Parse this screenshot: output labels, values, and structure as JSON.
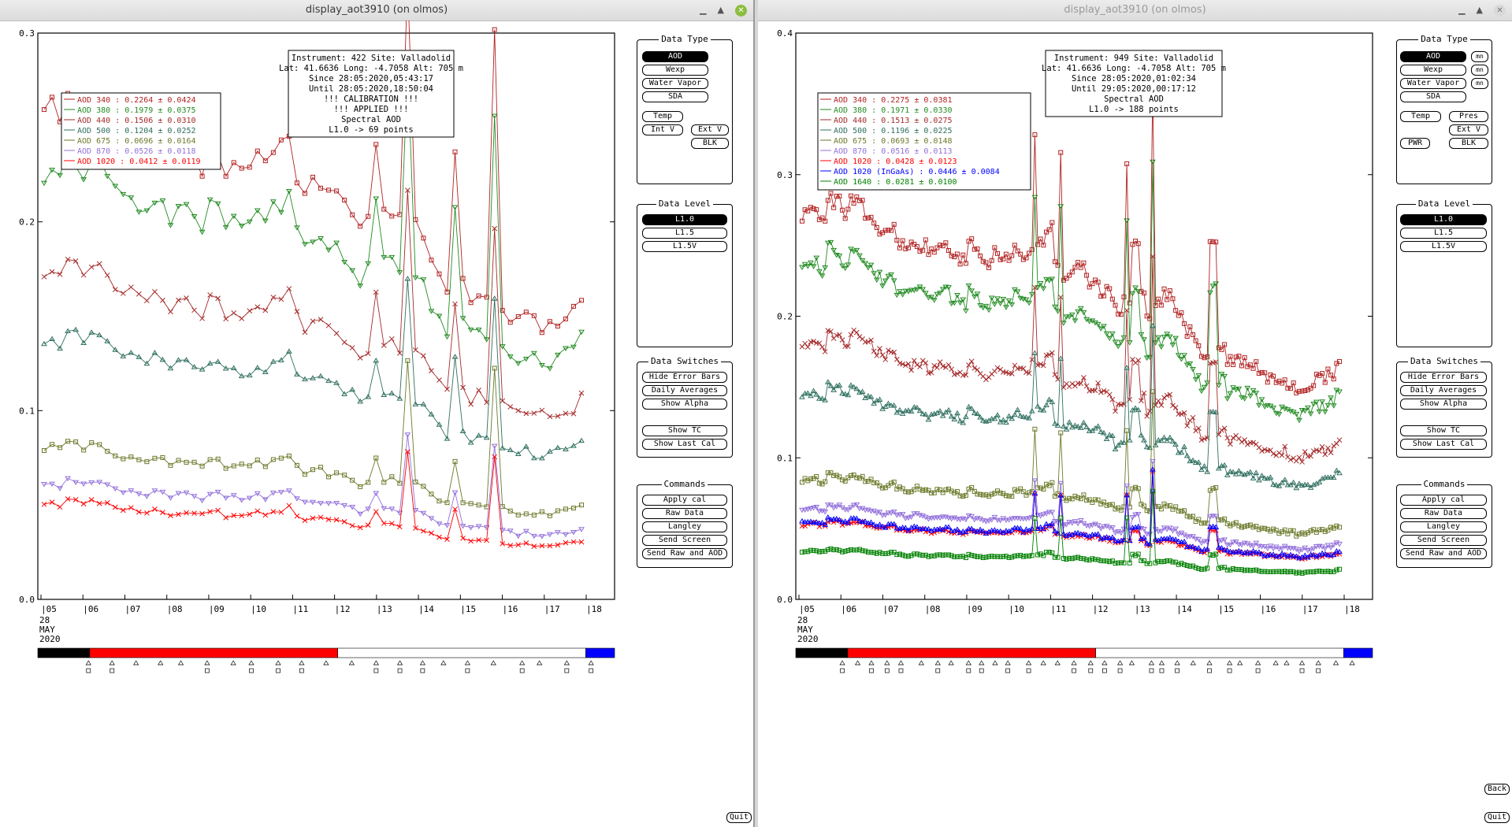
{
  "windows": [
    {
      "id": "L",
      "title": "display_aot3910 (on olmos)",
      "info": [
        "Instrument: 422 Site: Valladolid",
        "Lat: 41.6636 Long: -4.7058 Alt: 705 m",
        "Since 28:05:2020,05:43:17",
        "Until 28:05:2020,18:50:04",
        "!!! CALIBRATION !!!",
        "!!!  APPLIED  !!!",
        "Spectral AOD",
        "L1.0 -> 69 points"
      ],
      "legend": [
        {
          "label": "AOD 340  : 0.2264 ± 0.0424",
          "color": "#b22222",
          "marker": "square"
        },
        {
          "label": "AOD 380  : 0.1979 ± 0.0375",
          "color": "#228b22",
          "marker": "tridown"
        },
        {
          "label": "AOD 440  : 0.1506 ± 0.0310",
          "color": "#a52a2a",
          "marker": "x"
        },
        {
          "label": "AOD 500  : 0.1204 ± 0.0252",
          "color": "#2f6f5f",
          "marker": "triup"
        },
        {
          "label": "AOD 675  : 0.0696 ± 0.0164",
          "color": "#6b7a2a",
          "marker": "square"
        },
        {
          "label": "AOD 870  : 0.0526 ± 0.0118",
          "color": "#9370db",
          "marker": "tridown"
        },
        {
          "label": "AOD 1020  : 0.0412 ± 0.0119",
          "color": "#ff0000",
          "marker": "x"
        }
      ],
      "y_ticks": [
        "0.0",
        "0.1",
        "0.2",
        "0.3"
      ],
      "ymax": 0.3,
      "x_ticks": [
        "05",
        "06",
        "07",
        "08",
        "09",
        "10",
        "11",
        "12",
        "13",
        "14",
        "15",
        "16",
        "17",
        "18"
      ],
      "x_sub": [
        "28",
        "MAY",
        "2020"
      ],
      "quit_label": "Quit"
    },
    {
      "id": "R",
      "title": "display_aot3910 (on olmos)",
      "info": [
        "Instrument: 949 Site: Valladolid",
        "Lat: 41.6636 Long: -4.7058 Alt: 705 m",
        "Since 28:05:2020,01:02:34",
        "Until 29:05:2020,00:17:12",
        "Spectral AOD",
        "L1.0 -> 188 points"
      ],
      "legend": [
        {
          "label": "AOD 340  : 0.2275 ± 0.0381",
          "color": "#b22222",
          "marker": "square"
        },
        {
          "label": "AOD 380  : 0.1971 ± 0.0330",
          "color": "#228b22",
          "marker": "tridown"
        },
        {
          "label": "AOD 440  : 0.1513 ± 0.0275",
          "color": "#a52a2a",
          "marker": "x"
        },
        {
          "label": "AOD 500  : 0.1196 ± 0.0225",
          "color": "#2f6f5f",
          "marker": "triup"
        },
        {
          "label": "AOD 675  : 0.0693 ± 0.0148",
          "color": "#6b7a2a",
          "marker": "square"
        },
        {
          "label": "AOD 870  : 0.0516 ± 0.0113",
          "color": "#9370db",
          "marker": "tridown"
        },
        {
          "label": "AOD 1020  : 0.0428 ± 0.0123",
          "color": "#ff0000",
          "marker": "x"
        },
        {
          "label": "AOD 1020 (InGaAs)  : 0.0446 ± 0.0084",
          "color": "#0000ff",
          "marker": "triup"
        },
        {
          "label": "AOD 1640  : 0.0281 ± 0.0100",
          "color": "#008000",
          "marker": "square"
        }
      ],
      "y_ticks": [
        "0.0",
        "0.1",
        "0.2",
        "0.3",
        "0.4"
      ],
      "ymax": 0.4,
      "x_ticks": [
        "05",
        "06",
        "07",
        "08",
        "09",
        "10",
        "11",
        "12",
        "13",
        "14",
        "15",
        "16",
        "17",
        "18"
      ],
      "x_sub": [
        "28",
        "MAY",
        "2020"
      ],
      "quit_label": "Quit",
      "back_label": "Back",
      "mn_label": "mn"
    }
  ],
  "panels": {
    "data_type": {
      "title": "Data Type",
      "aod": "AOD",
      "wexp": "Wexp",
      "water_vapor": "Water Vapor",
      "sda": "SDA",
      "temp": "Temp",
      "int_v": "Int V",
      "ext_v": "Ext V",
      "blk": "BLK",
      "pres": "Pres",
      "pwr": "PWR"
    },
    "data_level": {
      "title": "Data Level",
      "l10": "L1.0",
      "l15": "L1.5",
      "l15v": "L1.5V"
    },
    "data_switches": {
      "title": "Data Switches",
      "hide_error": "Hide Error Bars",
      "daily": "Daily Averages",
      "alpha": "Show Alpha",
      "tc": "Show TC",
      "last_cal": "Show Last Cal"
    },
    "commands": {
      "title": "Commands",
      "apply_cal": "Apply cal",
      "raw": "Raw Data",
      "langley": "Langley",
      "send_screen": "Send Screen",
      "send_raw": "Send Raw and AOD"
    }
  },
  "colors": {
    "bar_black": "#000000",
    "bar_red": "#ff0000",
    "bar_white": "#ffffff",
    "bar_blue": "#0000ff"
  }
}
